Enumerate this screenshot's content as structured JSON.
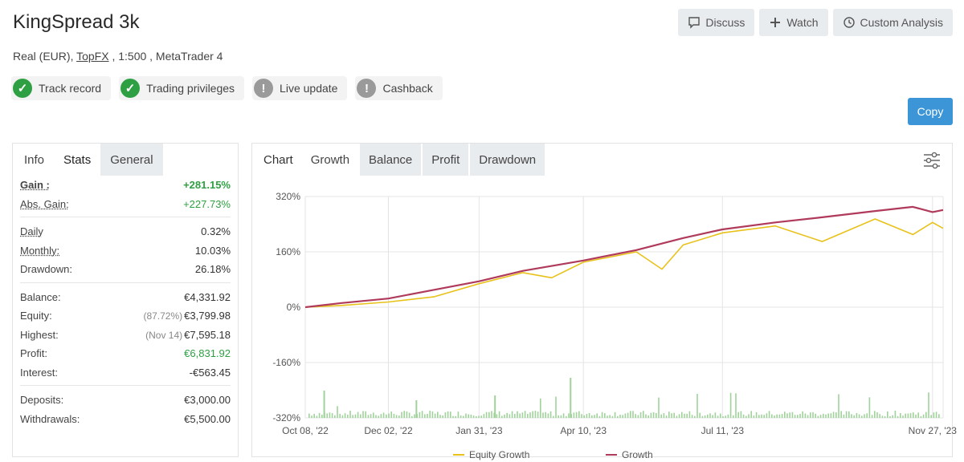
{
  "header": {
    "title": "KingSpread 3k",
    "subtitle_prefix": "Real (EUR), ",
    "broker_link": "TopFX",
    "subtitle_suffix": " , 1:500 , MetaTrader 4"
  },
  "badges": [
    {
      "label": "Track record",
      "status": "verified",
      "icon": "check-icon"
    },
    {
      "label": "Trading privileges",
      "status": "verified",
      "icon": "check-icon"
    },
    {
      "label": "Live update",
      "status": "not-verified",
      "icon": "exclamation-icon"
    },
    {
      "label": "Cashback",
      "status": "not-verified",
      "icon": "exclamation-icon"
    }
  ],
  "actions": {
    "discuss": "Discuss",
    "watch": "Watch",
    "custom_analysis": "Custom Analysis",
    "copy": "Copy"
  },
  "left_tabs": [
    "Info",
    "Stats",
    "General"
  ],
  "stats": {
    "gain_label": "Gain :",
    "gain_value": "+281.15%",
    "abs_gain_label": "Abs. Gain:",
    "abs_gain_value": "+227.73%",
    "daily_label": "Daily",
    "daily_value": "0.32%",
    "monthly_label": "Monthly:",
    "monthly_value": "10.03%",
    "drawdown_label": "Drawdown:",
    "drawdown_value": "26.18%",
    "balance_label": "Balance:",
    "balance_value": "€4,331.92",
    "equity_label": "Equity:",
    "equity_note": "(87.72%)",
    "equity_value": "€3,799.98",
    "highest_label": "Highest:",
    "highest_note": "(Nov 14)",
    "highest_value": "€7,595.18",
    "profit_label": "Profit:",
    "profit_value": "€6,831.92",
    "interest_label": "Interest:",
    "interest_value": "-€563.45",
    "deposits_label": "Deposits:",
    "deposits_value": "€3,000.00",
    "withdrawals_label": "Withdrawals:",
    "withdrawals_value": "€5,500.00"
  },
  "chart_tabs": {
    "label": "Chart",
    "tabs": [
      "Growth",
      "Balance",
      "Profit",
      "Drawdown"
    ],
    "active": "Growth"
  },
  "chart_data": {
    "type": "line",
    "y_ticks": [
      "320%",
      "160%",
      "0%",
      "-160%",
      "-320%"
    ],
    "ylim": [
      -320,
      320
    ],
    "x_ticks": [
      "Oct 08, '22",
      "Dec 02, '22",
      "Jan 31, '23",
      "Apr 10, '23",
      "Jul 11, '23",
      "Nov 27, '23"
    ],
    "x_tick_dates": [
      "2022-10-08",
      "2022-12-02",
      "2023-01-31",
      "2023-04-10",
      "2023-07-11",
      "2023-11-27"
    ],
    "series": [
      {
        "name": "Growth",
        "color": "#b03a5b",
        "x": [
          "2022-10-08",
          "2022-11-01",
          "2022-12-02",
          "2023-01-01",
          "2023-01-31",
          "2023-03-01",
          "2023-04-10",
          "2023-05-15",
          "2023-06-15",
          "2023-07-11",
          "2023-08-15",
          "2023-09-15",
          "2023-10-20",
          "2023-11-14",
          "2023-11-27",
          "2023-12-04"
        ],
        "y": [
          0,
          12,
          25,
          50,
          75,
          105,
          135,
          165,
          200,
          225,
          245,
          260,
          278,
          290,
          275,
          281
        ]
      },
      {
        "name": "Equity Growth",
        "color": "#e8c21a",
        "x": [
          "2022-10-08",
          "2022-11-01",
          "2022-12-02",
          "2023-01-01",
          "2023-01-31",
          "2023-03-01",
          "2023-03-20",
          "2023-04-10",
          "2023-05-15",
          "2023-06-01",
          "2023-06-15",
          "2023-07-11",
          "2023-08-15",
          "2023-09-15",
          "2023-10-20",
          "2023-11-14",
          "2023-11-27",
          "2023-12-04"
        ],
        "y": [
          0,
          5,
          15,
          30,
          68,
          100,
          85,
          130,
          160,
          110,
          180,
          215,
          235,
          190,
          255,
          210,
          245,
          228
        ]
      }
    ],
    "legend": [
      "Equity Growth",
      "Growth"
    ],
    "legend_position": "bottom",
    "bars_color": "#9fd39a"
  }
}
